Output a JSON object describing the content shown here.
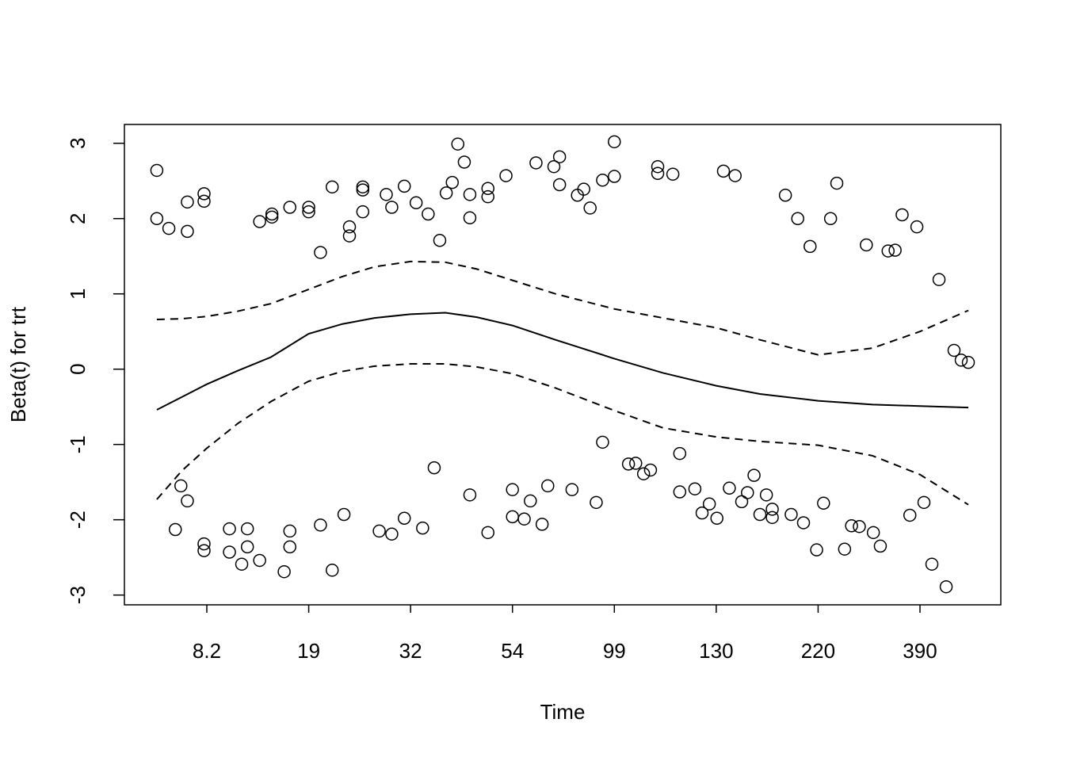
{
  "chart_data": {
    "type": "scatter",
    "xlabel": "Time",
    "ylabel": "Beta(t) for trt",
    "xlim": [
      -0.7,
      522.4
    ],
    "ylim": [
      -3.13,
      3.25
    ],
    "xticks": [
      8.2,
      19,
      32,
      54,
      99,
      130,
      220,
      390
    ],
    "yticks": [
      -3,
      -2,
      -1,
      0,
      1,
      2,
      3
    ],
    "color": "#000000",
    "x": [
      2.8,
      2.8,
      4.1,
      6.1,
      6.1,
      7.9,
      7.9,
      13.8,
      15.1,
      15.1,
      17.0,
      19,
      19,
      20.5,
      22.0,
      24.2,
      24.2,
      25.9,
      25.9,
      25.9,
      28.9,
      29.6,
      31.2,
      33.2,
      35.8,
      38.3,
      39.7,
      41.0,
      42.2,
      43.6,
      44.8,
      44.8,
      48.7,
      48.7,
      52.6,
      64.4,
      72.3,
      74.8,
      74.8,
      82.7,
      85.5,
      88.3,
      93.8,
      99,
      99,
      112.2,
      112.2,
      116.8,
      136.4,
      146.7,
      191.1,
      202.0,
      212.9,
      240.8,
      251.2,
      300.5,
      336.8,
      348.5,
      360.2,
      384.8,
      421.2,
      445.8,
      457.5,
      469.2,
      5.4,
      4.8,
      6.1,
      7.9,
      7.9,
      10.6,
      10.6,
      11.9,
      12.5,
      12.5,
      13.8,
      16.4,
      17.0,
      17.0,
      20.5,
      22.0,
      23.5,
      28.0,
      29.6,
      31.2,
      34.6,
      37.1,
      44.8,
      48.7,
      54,
      54,
      59.2,
      61.9,
      67.1,
      69.6,
      80.3,
      91.0,
      93.8,
      103.3,
      105.5,
      107.9,
      110.0,
      118.9,
      118.9,
      123.5,
      125.7,
      127.9,
      130.6,
      141.6,
      152.5,
      157.6,
      163.4,
      168.6,
      174.3,
      179.5,
      179.5,
      196.2,
      207.1,
      218.7,
      229.1,
      264.2,
      275.8,
      288.8,
      312.2,
      323.8,
      373.1,
      396.5,
      409.5,
      432.9
    ],
    "values": [
      2.64,
      2.0,
      1.87,
      2.22,
      1.83,
      2.33,
      2.23,
      1.96,
      2.06,
      2.02,
      2.15,
      2.15,
      2.09,
      1.55,
      2.42,
      1.89,
      1.77,
      2.42,
      2.38,
      2.09,
      2.32,
      2.15,
      2.43,
      2.21,
      2.06,
      1.71,
      2.34,
      2.48,
      2.99,
      2.75,
      2.32,
      2.01,
      2.4,
      2.29,
      2.57,
      2.74,
      2.69,
      2.82,
      2.45,
      2.31,
      2.39,
      2.14,
      2.51,
      3.02,
      2.56,
      2.69,
      2.6,
      2.59,
      2.63,
      2.57,
      2.31,
      2.0,
      1.63,
      2.0,
      2.47,
      1.65,
      1.57,
      1.58,
      2.05,
      1.89,
      1.19,
      0.25,
      0.12,
      0.09,
      -1.55,
      -2.13,
      -1.75,
      -2.32,
      -2.41,
      -2.12,
      -2.43,
      -2.59,
      -2.12,
      -2.36,
      -2.54,
      -2.69,
      -2.15,
      -2.36,
      -2.07,
      -2.67,
      -1.93,
      -2.15,
      -2.19,
      -1.98,
      -2.11,
      -1.31,
      -1.67,
      -2.17,
      -1.6,
      -1.96,
      -1.99,
      -1.75,
      -2.06,
      -1.55,
      -1.6,
      -1.77,
      -0.97,
      -1.26,
      -1.25,
      -1.39,
      -1.34,
      -1.12,
      -1.63,
      -1.59,
      -1.91,
      -1.79,
      -1.98,
      -1.58,
      -1.76,
      -1.64,
      -1.41,
      -1.93,
      -1.67,
      -1.86,
      -1.97,
      -1.93,
      -2.04,
      -2.4,
      -1.78,
      -2.39,
      -2.08,
      -2.09,
      -2.17,
      -2.35,
      -1.94,
      -1.77,
      -2.59,
      -2.89
    ],
    "line_x": [
      2.8,
      5.5,
      8.2,
      11.5,
      15.0,
      19,
      23.3,
      27.4,
      32,
      39.5,
      46.3,
      54,
      73.0,
      99,
      113.8,
      130,
      168.6,
      220,
      310.9,
      390,
      469.2
    ],
    "lines": [
      {
        "dash": "solid",
        "values": [
          -0.54,
          -0.37,
          -0.2,
          -0.02,
          0.16,
          0.47,
          0.6,
          0.68,
          0.73,
          0.75,
          0.69,
          0.58,
          0.39,
          0.14,
          -0.05,
          -0.22,
          -0.33,
          -0.42,
          -0.47,
          -0.49,
          -0.51
        ]
      },
      {
        "dash": "dashed",
        "values": [
          0.66,
          0.67,
          0.7,
          0.77,
          0.87,
          1.06,
          1.23,
          1.36,
          1.43,
          1.42,
          1.33,
          1.18,
          1.0,
          0.8,
          0.68,
          0.55,
          0.39,
          0.19,
          0.28,
          0.5,
          0.78
        ]
      },
      {
        "dash": "dashed",
        "values": [
          -1.73,
          -1.35,
          -1.05,
          -0.72,
          -0.43,
          -0.16,
          -0.03,
          0.04,
          0.07,
          0.07,
          0.03,
          -0.06,
          -0.25,
          -0.55,
          -0.78,
          -0.9,
          -0.96,
          -1.01,
          -1.15,
          -1.4,
          -1.8
        ]
      }
    ]
  }
}
